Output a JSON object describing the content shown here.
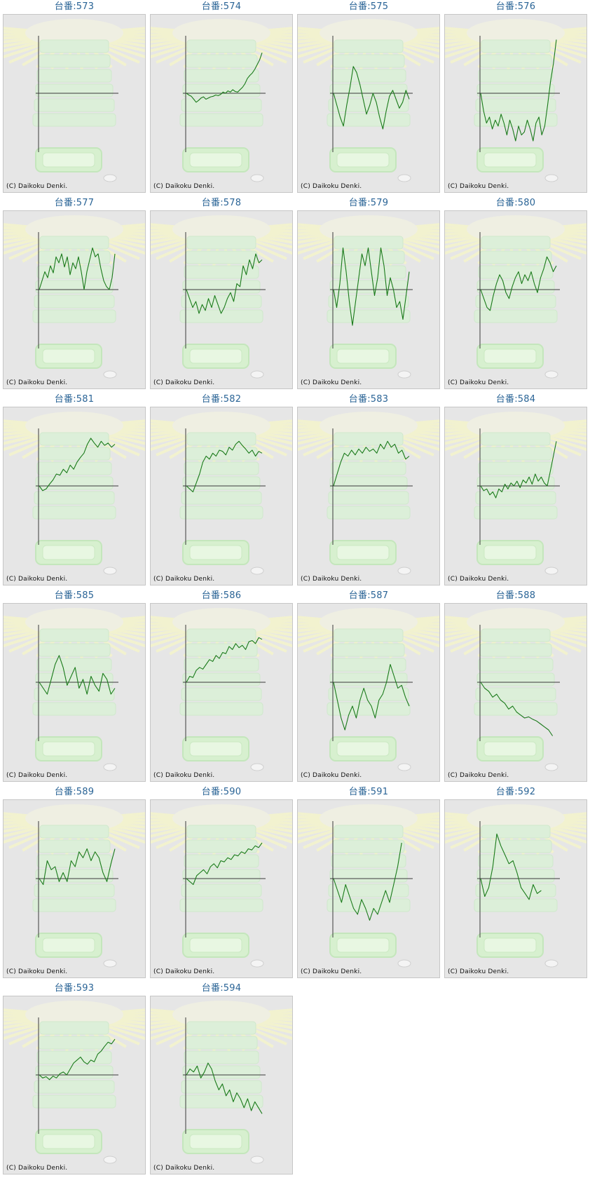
{
  "copyright": "(C) Daikoku Denki.",
  "line_color": "#1a7a1a",
  "title_color": "#2a6496",
  "chart_data": [
    {
      "type": "line",
      "title": "台番:573",
      "values": []
    },
    {
      "type": "line",
      "title": "台番:574",
      "values": [
        0,
        -3,
        -5,
        -10,
        -15,
        -12,
        -8,
        -6,
        -10,
        -8,
        -6,
        -5,
        -3,
        -4,
        -2,
        2,
        0,
        4,
        2,
        6,
        3,
        2,
        6,
        10,
        16,
        25,
        30,
        34,
        40,
        48,
        56,
        68
      ]
    },
    {
      "type": "line",
      "title": "台番:575",
      "values": [
        0,
        -20,
        -40,
        -55,
        -20,
        10,
        45,
        35,
        15,
        -10,
        -35,
        -20,
        0,
        -15,
        -40,
        -60,
        -30,
        -5,
        5,
        -10,
        -25,
        -15,
        5,
        -10
      ]
    },
    {
      "type": "line",
      "title": "台番:576",
      "values": [
        0,
        -30,
        -50,
        -40,
        -60,
        -45,
        -55,
        -35,
        -50,
        -70,
        -45,
        -60,
        -80,
        -55,
        -70,
        -65,
        -45,
        -60,
        -80,
        -50,
        -40,
        -70,
        -55,
        -20,
        20,
        50,
        90
      ]
    },
    {
      "type": "line",
      "title": "台番:577",
      "values": [
        0,
        15,
        30,
        20,
        40,
        28,
        55,
        45,
        60,
        38,
        55,
        25,
        45,
        35,
        55,
        30,
        0,
        30,
        50,
        70,
        55,
        60,
        35,
        15,
        5,
        0,
        20,
        60
      ]
    },
    {
      "type": "line",
      "title": "台番:578",
      "values": [
        0,
        -15,
        -30,
        -20,
        -40,
        -25,
        -35,
        -15,
        -30,
        -10,
        -25,
        -40,
        -30,
        -15,
        -5,
        -20,
        10,
        5,
        40,
        25,
        50,
        35,
        60,
        45,
        50
      ]
    },
    {
      "type": "line",
      "title": "台番:579",
      "values": [
        0,
        -30,
        10,
        70,
        30,
        -20,
        -60,
        -20,
        20,
        60,
        40,
        70,
        30,
        -10,
        20,
        70,
        40,
        -10,
        20,
        0,
        -30,
        -20,
        -50,
        -10,
        30
      ]
    },
    {
      "type": "line",
      "title": "台番:580",
      "values": [
        0,
        -15,
        -30,
        -35,
        -10,
        10,
        25,
        15,
        -5,
        -15,
        5,
        20,
        30,
        10,
        25,
        15,
        30,
        10,
        -5,
        20,
        35,
        55,
        45,
        30,
        40
      ]
    },
    {
      "type": "line",
      "title": "台番:581",
      "values": [
        0,
        -8,
        -5,
        3,
        10,
        20,
        18,
        28,
        22,
        35,
        28,
        40,
        48,
        55,
        70,
        80,
        72,
        65,
        75,
        68,
        72,
        65,
        70
      ]
    },
    {
      "type": "line",
      "title": "台番:582",
      "values": [
        0,
        -5,
        -10,
        5,
        20,
        40,
        50,
        45,
        55,
        50,
        60,
        58,
        52,
        65,
        60,
        70,
        75,
        68,
        62,
        55,
        60,
        50,
        58,
        55
      ]
    },
    {
      "type": "line",
      "title": "台番:583",
      "values": [
        0,
        20,
        40,
        55,
        50,
        60,
        52,
        62,
        55,
        65,
        58,
        62,
        55,
        70,
        62,
        75,
        65,
        70,
        55,
        60,
        45,
        50
      ]
    },
    {
      "type": "line",
      "title": "台番:584",
      "values": [
        0,
        -8,
        -5,
        -15,
        -10,
        -20,
        -5,
        -10,
        3,
        -5,
        5,
        0,
        8,
        -3,
        10,
        5,
        15,
        3,
        20,
        8,
        15,
        5,
        0,
        25,
        50,
        75
      ]
    },
    {
      "type": "line",
      "title": "台番:585",
      "values": [
        0,
        -10,
        -20,
        5,
        30,
        45,
        25,
        -5,
        10,
        25,
        -10,
        5,
        -20,
        10,
        -5,
        -15,
        15,
        5,
        -20,
        -10
      ]
    },
    {
      "type": "line",
      "title": "台番:586",
      "values": [
        0,
        10,
        8,
        20,
        25,
        22,
        30,
        38,
        35,
        45,
        40,
        50,
        48,
        60,
        55,
        65,
        58,
        62,
        55,
        68,
        70,
        65,
        75,
        72
      ]
    },
    {
      "type": "line",
      "title": "台番:587",
      "values": [
        0,
        -30,
        -60,
        -80,
        -55,
        -40,
        -60,
        -30,
        -10,
        -30,
        -40,
        -60,
        -30,
        -20,
        0,
        30,
        10,
        -10,
        -5,
        -25,
        -40
      ]
    },
    {
      "type": "line",
      "title": "台番:588",
      "values": [
        0,
        -10,
        -15,
        -25,
        -20,
        -30,
        -35,
        -45,
        -40,
        -50,
        -55,
        -60,
        -58,
        -62,
        -65,
        -70,
        -75,
        -80,
        -90
      ]
    },
    {
      "type": "line",
      "title": "台番:589",
      "values": [
        0,
        -10,
        30,
        15,
        20,
        -5,
        10,
        -5,
        30,
        20,
        45,
        35,
        50,
        30,
        45,
        35,
        10,
        -5,
        25,
        50
      ]
    },
    {
      "type": "line",
      "title": "台番:590",
      "values": [
        0,
        -5,
        -10,
        5,
        10,
        15,
        8,
        20,
        25,
        18,
        30,
        28,
        35,
        32,
        40,
        38,
        45,
        42,
        50,
        48,
        55,
        52,
        60
      ]
    },
    {
      "type": "line",
      "title": "台番:591",
      "values": [
        0,
        -20,
        -40,
        -10,
        -30,
        -50,
        -60,
        -35,
        -50,
        -70,
        -50,
        -60,
        -40,
        -20,
        -40,
        -10,
        20,
        60
      ]
    },
    {
      "type": "line",
      "title": "台番:592",
      "values": [
        0,
        -30,
        -15,
        20,
        75,
        55,
        40,
        25,
        30,
        10,
        -15,
        -25,
        -35,
        -10,
        -25,
        -20
      ]
    },
    {
      "type": "line",
      "title": "台番:593",
      "values": [
        0,
        -5,
        -3,
        -8,
        -2,
        -5,
        2,
        5,
        0,
        10,
        20,
        25,
        30,
        22,
        18,
        25,
        22,
        35,
        40,
        48,
        55,
        52,
        60
      ]
    },
    {
      "type": "line",
      "title": "台番:594",
      "values": [
        0,
        10,
        5,
        15,
        -5,
        5,
        20,
        10,
        -10,
        -25,
        -15,
        -35,
        -25,
        -45,
        -30,
        -40,
        -55,
        -40,
        -60,
        -45,
        -55,
        -65
      ]
    }
  ]
}
